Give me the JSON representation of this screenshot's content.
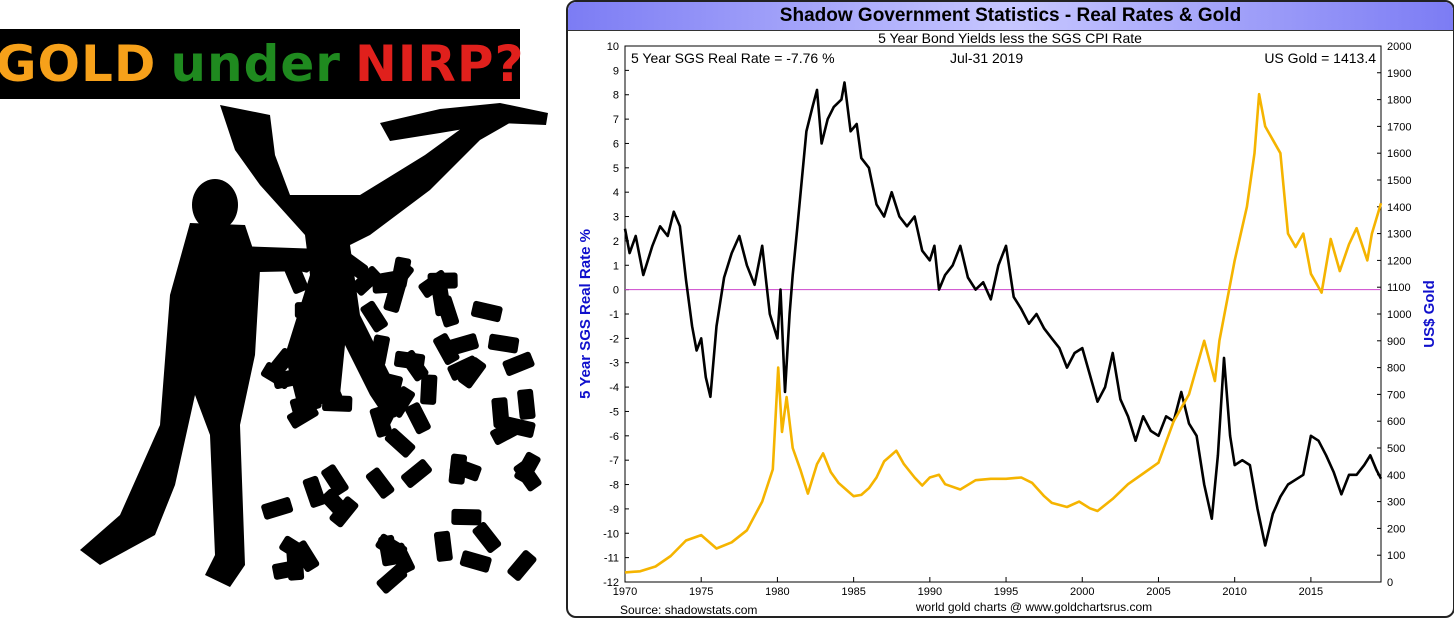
{
  "headline": {
    "words": [
      {
        "text": "GOLD",
        "color": "#f7a11a"
      },
      {
        "text": "under",
        "color": "#1f8a1f"
      },
      {
        "text": "NIRP?",
        "color": "#e0201c"
      }
    ]
  },
  "colors": {
    "real_rate": "#000000",
    "gold": "#f5b400",
    "zero_line": "#cc44cc",
    "axis_label": "#1010cc"
  },
  "chart_data": {
    "type": "line",
    "title": "Shadow Government Statistics - Real Rates & Gold",
    "subtitle": "5 Year Bond Yields less the SGS CPI Rate",
    "annotations": {
      "left": "5 Year SGS Real Rate = -7.76 %",
      "center": "Jul-31  2019",
      "right": "US Gold = 1413.4"
    },
    "source_left": "Source: shadowstats.com",
    "source_center": "world gold charts @ www.goldchartsrus.com",
    "y_left_label": "5 Year SGS Real Rate %",
    "y_right_label": "US$ Gold",
    "xlim": [
      1970,
      2019.6
    ],
    "y_left_lim": [
      -12,
      10
    ],
    "y_right_lim": [
      0,
      2000
    ],
    "x_ticks": [
      "1970",
      "1975",
      "1980",
      "1985",
      "1990",
      "1995",
      "2000",
      "2005",
      "2010",
      "2015"
    ],
    "y_left_ticks": [
      "-12",
      "-11",
      "-10",
      "-9",
      "-8",
      "-7",
      "-6",
      "-5",
      "-4",
      "-3",
      "-2",
      "-1",
      "0",
      "1",
      "2",
      "3",
      "4",
      "5",
      "6",
      "7",
      "8",
      "9",
      "10"
    ],
    "y_right_ticks": [
      "0",
      "100",
      "200",
      "300",
      "400",
      "500",
      "600",
      "700",
      "800",
      "900",
      "1000",
      "1100",
      "1200",
      "1300",
      "1400",
      "1500",
      "1600",
      "1700",
      "1800",
      "1900",
      "2000"
    ],
    "reference_line": {
      "axis": "left",
      "value": 0
    },
    "grid": false,
    "series": [
      {
        "axis": "left",
        "points": [
          [
            1970.0,
            2.5
          ],
          [
            1970.3,
            1.5
          ],
          [
            1970.7,
            2.2
          ],
          [
            1971.2,
            0.6
          ],
          [
            1971.8,
            1.8
          ],
          [
            1972.3,
            2.6
          ],
          [
            1972.8,
            2.2
          ],
          [
            1973.2,
            3.2
          ],
          [
            1973.6,
            2.6
          ],
          [
            1974.0,
            0.4
          ],
          [
            1974.4,
            -1.5
          ],
          [
            1974.7,
            -2.5
          ],
          [
            1975.0,
            -2.0
          ],
          [
            1975.3,
            -3.6
          ],
          [
            1975.6,
            -4.4
          ],
          [
            1976.0,
            -1.5
          ],
          [
            1976.5,
            0.5
          ],
          [
            1977.0,
            1.5
          ],
          [
            1977.5,
            2.2
          ],
          [
            1978.0,
            1.0
          ],
          [
            1978.5,
            0.2
          ],
          [
            1979.0,
            1.8
          ],
          [
            1979.5,
            -1.0
          ],
          [
            1980.0,
            -2.0
          ],
          [
            1980.2,
            0.0
          ],
          [
            1980.5,
            -4.2
          ],
          [
            1980.8,
            -1.0
          ],
          [
            1981.0,
            0.6
          ],
          [
            1981.3,
            2.5
          ],
          [
            1981.6,
            4.5
          ],
          [
            1981.9,
            6.5
          ],
          [
            1982.3,
            7.5
          ],
          [
            1982.6,
            8.2
          ],
          [
            1982.9,
            6.0
          ],
          [
            1983.3,
            7.0
          ],
          [
            1983.7,
            7.5
          ],
          [
            1984.2,
            7.8
          ],
          [
            1984.4,
            8.5
          ],
          [
            1984.8,
            6.5
          ],
          [
            1985.2,
            6.8
          ],
          [
            1985.5,
            5.4
          ],
          [
            1986.0,
            5.0
          ],
          [
            1986.5,
            3.5
          ],
          [
            1987.0,
            3.0
          ],
          [
            1987.5,
            4.0
          ],
          [
            1988.0,
            3.0
          ],
          [
            1988.5,
            2.6
          ],
          [
            1989.0,
            3.0
          ],
          [
            1989.5,
            1.6
          ],
          [
            1990.0,
            1.2
          ],
          [
            1990.3,
            1.8
          ],
          [
            1990.6,
            0.0
          ],
          [
            1991.0,
            0.6
          ],
          [
            1991.5,
            1.0
          ],
          [
            1992.0,
            1.8
          ],
          [
            1992.5,
            0.5
          ],
          [
            1993.0,
            0.0
          ],
          [
            1993.5,
            0.3
          ],
          [
            1994.0,
            -0.4
          ],
          [
            1994.5,
            1.0
          ],
          [
            1995.0,
            1.8
          ],
          [
            1995.5,
            -0.3
          ],
          [
            1996.0,
            -0.8
          ],
          [
            1996.5,
            -1.4
          ],
          [
            1997.0,
            -1.0
          ],
          [
            1997.5,
            -1.6
          ],
          [
            1998.0,
            -2.0
          ],
          [
            1998.5,
            -2.4
          ],
          [
            1999.0,
            -3.2
          ],
          [
            1999.5,
            -2.6
          ],
          [
            2000.0,
            -2.4
          ],
          [
            2000.5,
            -3.5
          ],
          [
            2001.0,
            -4.6
          ],
          [
            2001.5,
            -4.0
          ],
          [
            2002.0,
            -2.6
          ],
          [
            2002.5,
            -4.5
          ],
          [
            2003.0,
            -5.2
          ],
          [
            2003.5,
            -6.2
          ],
          [
            2004.0,
            -5.2
          ],
          [
            2004.5,
            -5.8
          ],
          [
            2005.0,
            -6.0
          ],
          [
            2005.5,
            -5.2
          ],
          [
            2006.0,
            -5.4
          ],
          [
            2006.5,
            -4.2
          ],
          [
            2007.0,
            -5.5
          ],
          [
            2007.5,
            -6.0
          ],
          [
            2008.0,
            -8.0
          ],
          [
            2008.5,
            -9.4
          ],
          [
            2008.9,
            -6.8
          ],
          [
            2009.3,
            -2.8
          ],
          [
            2009.7,
            -6.0
          ],
          [
            2010.0,
            -7.2
          ],
          [
            2010.5,
            -7.0
          ],
          [
            2011.0,
            -7.2
          ],
          [
            2011.5,
            -9.0
          ],
          [
            2012.0,
            -10.5
          ],
          [
            2012.5,
            -9.2
          ],
          [
            2013.0,
            -8.5
          ],
          [
            2013.5,
            -8.0
          ],
          [
            2014.0,
            -7.8
          ],
          [
            2014.5,
            -7.6
          ],
          [
            2015.0,
            -6.0
          ],
          [
            2015.5,
            -6.2
          ],
          [
            2016.0,
            -6.8
          ],
          [
            2016.5,
            -7.5
          ],
          [
            2017.0,
            -8.4
          ],
          [
            2017.5,
            -7.6
          ],
          [
            2018.0,
            -7.6
          ],
          [
            2018.5,
            -7.2
          ],
          [
            2018.9,
            -6.8
          ],
          [
            2019.3,
            -7.4
          ],
          [
            2019.6,
            -7.76
          ]
        ]
      },
      {
        "axis": "right",
        "points": [
          [
            1970.0,
            36
          ],
          [
            1971.0,
            40
          ],
          [
            1972.0,
            58
          ],
          [
            1973.0,
            97
          ],
          [
            1974.0,
            155
          ],
          [
            1975.0,
            175
          ],
          [
            1976.0,
            125
          ],
          [
            1977.0,
            148
          ],
          [
            1978.0,
            193
          ],
          [
            1979.0,
            300
          ],
          [
            1979.7,
            420
          ],
          [
            1980.05,
            800
          ],
          [
            1980.3,
            560
          ],
          [
            1980.6,
            690
          ],
          [
            1981.0,
            500
          ],
          [
            1981.5,
            420
          ],
          [
            1982.0,
            330
          ],
          [
            1982.6,
            440
          ],
          [
            1983.0,
            480
          ],
          [
            1983.5,
            410
          ],
          [
            1984.0,
            370
          ],
          [
            1984.5,
            345
          ],
          [
            1985.0,
            320
          ],
          [
            1985.5,
            325
          ],
          [
            1986.0,
            350
          ],
          [
            1986.5,
            390
          ],
          [
            1987.0,
            450
          ],
          [
            1987.8,
            490
          ],
          [
            1988.3,
            440
          ],
          [
            1989.0,
            390
          ],
          [
            1989.5,
            360
          ],
          [
            1990.0,
            390
          ],
          [
            1990.6,
            400
          ],
          [
            1991.0,
            365
          ],
          [
            1992.0,
            345
          ],
          [
            1993.0,
            380
          ],
          [
            1994.0,
            385
          ],
          [
            1995.0,
            385
          ],
          [
            1996.0,
            390
          ],
          [
            1996.7,
            370
          ],
          [
            1997.5,
            320
          ],
          [
            1998.0,
            295
          ],
          [
            1999.0,
            280
          ],
          [
            1999.8,
            300
          ],
          [
            2000.5,
            275
          ],
          [
            2001.0,
            265
          ],
          [
            2002.0,
            310
          ],
          [
            2003.0,
            365
          ],
          [
            2004.0,
            405
          ],
          [
            2005.0,
            445
          ],
          [
            2006.0,
            600
          ],
          [
            2007.0,
            700
          ],
          [
            2008.0,
            900
          ],
          [
            2008.7,
            750
          ],
          [
            2009.0,
            900
          ],
          [
            2010.0,
            1200
          ],
          [
            2010.8,
            1400
          ],
          [
            2011.3,
            1600
          ],
          [
            2011.6,
            1820
          ],
          [
            2012.0,
            1700
          ],
          [
            2012.5,
            1650
          ],
          [
            2013.0,
            1600
          ],
          [
            2013.5,
            1300
          ],
          [
            2014.0,
            1250
          ],
          [
            2014.5,
            1300
          ],
          [
            2015.0,
            1150
          ],
          [
            2015.7,
            1080
          ],
          [
            2016.3,
            1280
          ],
          [
            2016.9,
            1160
          ],
          [
            2017.5,
            1260
          ],
          [
            2018.0,
            1320
          ],
          [
            2018.7,
            1200
          ],
          [
            2019.0,
            1300
          ],
          [
            2019.6,
            1413.4
          ]
        ]
      }
    ]
  }
}
